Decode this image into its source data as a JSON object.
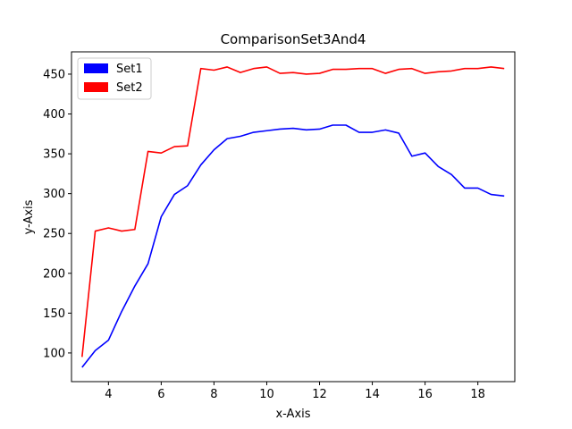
{
  "chart_data": {
    "type": "line",
    "title": "ComparisonSet3And4",
    "xlabel": "x-Axis",
    "ylabel": "y-Axis",
    "xlim": [
      2.6,
      19.4
    ],
    "ylim": [
      64,
      478
    ],
    "xticks": [
      4,
      6,
      8,
      10,
      12,
      14,
      16,
      18
    ],
    "yticks": [
      100,
      150,
      200,
      250,
      300,
      350,
      400,
      450
    ],
    "grid": false,
    "legend_position": "top-left",
    "x": [
      3,
      3.5,
      4,
      4.5,
      5,
      5.5,
      6,
      6.5,
      7,
      7.5,
      8,
      8.5,
      9,
      9.5,
      10,
      10.5,
      11,
      11.5,
      12,
      12.5,
      13,
      13.5,
      14,
      14.5,
      15,
      15.5,
      16,
      16.5,
      17,
      17.5,
      18,
      18.5,
      19
    ],
    "series": [
      {
        "name": "Set1",
        "color": "#0000ff",
        "values": [
          82,
          103,
          116,
          152,
          184,
          212,
          271,
          299,
          310,
          336,
          355,
          369,
          372,
          377,
          379,
          381,
          382,
          380,
          381,
          386,
          386,
          377,
          377,
          380,
          376,
          347,
          351,
          334,
          324,
          307,
          307,
          299,
          297
        ]
      },
      {
        "name": "Set2",
        "color": "#ff0000",
        "values": [
          95,
          253,
          257,
          253,
          255,
          353,
          351,
          359,
          360,
          457,
          455,
          459,
          452,
          457,
          459,
          451,
          452,
          450,
          451,
          456,
          456,
          457,
          457,
          451,
          456,
          457,
          451,
          453,
          454,
          457,
          457,
          459,
          457
        ]
      }
    ]
  }
}
